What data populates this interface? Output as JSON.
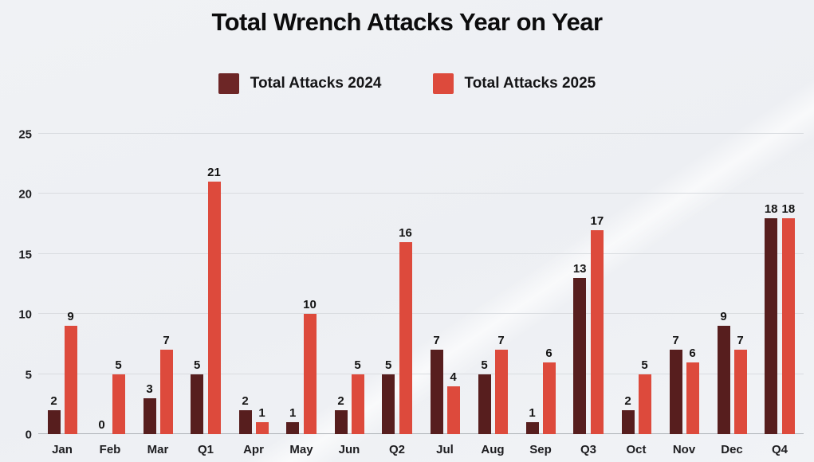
{
  "title": "Total Wrench Attacks Year on Year",
  "legend": {
    "items": [
      {
        "label": "Total Attacks 2024",
        "color": "#6d2626"
      },
      {
        "label": "Total Attacks 2025",
        "color": "#dd4a3c"
      }
    ]
  },
  "colors": {
    "background": "#eef1f4",
    "gridline": "#d9dce0",
    "axis_line": "#aeb2b7",
    "label_text": "#1d1d20"
  },
  "chart_data": {
    "type": "bar",
    "categories": [
      "Jan",
      "Feb",
      "Mar",
      "Q1",
      "Apr",
      "May",
      "Jun",
      "Q2",
      "Jul",
      "Aug",
      "Sep",
      "Q3",
      "Oct",
      "Nov",
      "Dec",
      "Q4"
    ],
    "series": [
      {
        "name": "Total Attacks 2024",
        "color": "#571e1e",
        "values": [
          2,
          0,
          3,
          5,
          2,
          1,
          2,
          5,
          7,
          5,
          1,
          13,
          2,
          7,
          9,
          18
        ]
      },
      {
        "name": "Total Attacks 2025",
        "color": "#dd4a3c",
        "values": [
          9,
          5,
          7,
          21,
          1,
          10,
          5,
          16,
          4,
          7,
          6,
          17,
          5,
          6,
          7,
          18
        ]
      }
    ],
    "title": "Total Wrench Attacks Year on Year",
    "xlabel": "",
    "ylabel": "",
    "ylim": [
      0,
      25
    ],
    "yticks": [
      0,
      5,
      10,
      15,
      20,
      25
    ],
    "grid": true,
    "legend_position": "top",
    "value_labels": true
  }
}
